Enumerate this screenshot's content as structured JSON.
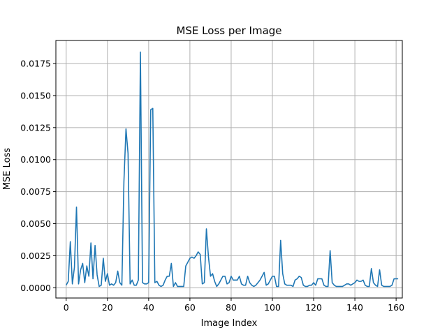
{
  "chart_data": {
    "type": "line",
    "title": "MSE Loss per Image",
    "xlabel": "Image Index",
    "ylabel": "MSE Loss",
    "xlim": [
      -5,
      163
    ],
    "ylim": [
      -0.0008,
      0.0193
    ],
    "xticks": [
      0,
      20,
      40,
      60,
      80,
      100,
      120,
      140,
      160
    ],
    "yticks": [
      0.0,
      0.0025,
      0.005,
      0.0075,
      0.01,
      0.0125,
      0.015,
      0.0175
    ],
    "xtick_labels": [
      "0",
      "20",
      "40",
      "60",
      "80",
      "100",
      "120",
      "140",
      "160"
    ],
    "ytick_labels": [
      "0.0000",
      "0.0025",
      "0.0050",
      "0.0075",
      "0.0100",
      "0.0125",
      "0.0150",
      "0.0175"
    ],
    "grid": true,
    "series": [
      {
        "color": "#1f77b4",
        "values": [
          0.0002,
          0.0005,
          0.0036,
          0.0003,
          0.0016,
          0.0063,
          0.0003,
          0.0014,
          0.0019,
          0.0004,
          0.0017,
          0.0009,
          0.0035,
          0.0007,
          0.0033,
          0.001,
          0.0001,
          0.0002,
          0.0023,
          0.0005,
          0.0011,
          0.0002,
          0.0003,
          0.0002,
          0.0004,
          0.0013,
          0.0004,
          0.0002,
          0.0083,
          0.0124,
          0.0105,
          0.0003,
          0.0006,
          0.0002,
          0.0002,
          0.0006,
          0.0184,
          0.0004,
          0.0003,
          0.0003,
          0.0004,
          0.0139,
          0.014,
          0.0004,
          0.0005,
          0.0002,
          0.0001,
          0.0002,
          0.0006,
          0.0009,
          0.0009,
          0.0019,
          0.0001,
          0.0004,
          0.0001,
          0.0001,
          0.0001,
          0.0001,
          0.0017,
          0.002,
          0.0023,
          0.0024,
          0.0023,
          0.0025,
          0.0028,
          0.0026,
          0.0003,
          0.0004,
          0.0046,
          0.0024,
          0.0009,
          0.0011,
          0.0005,
          0.0001,
          0.0003,
          0.0006,
          0.0009,
          0.0009,
          0.0003,
          0.0004,
          0.0009,
          0.0006,
          0.0006,
          0.0006,
          0.0009,
          0.0003,
          0.0002,
          0.0002,
          0.0009,
          0.0004,
          0.0002,
          0.0001,
          0.0002,
          0.0004,
          0.0006,
          0.0009,
          0.0012,
          0.0002,
          0.0003,
          0.0006,
          0.0009,
          0.0009,
          0.0001,
          0.0001,
          0.0037,
          0.0011,
          0.0003,
          0.0002,
          0.0002,
          0.0002,
          0.0001,
          0.0006,
          0.0007,
          0.0009,
          0.0008,
          0.0002,
          0.0001,
          0.0001,
          0.0002,
          0.0002,
          0.0004,
          0.0002,
          0.0007,
          0.0007,
          0.0007,
          0.0002,
          0.0001,
          0.0001,
          0.0029,
          0.0004,
          0.0002,
          0.0001,
          0.0001,
          0.0001,
          0.0001,
          0.0002,
          0.0003,
          0.0003,
          0.0002,
          0.0003,
          0.0004,
          0.0006,
          0.0005,
          0.0005,
          0.0006,
          0.0002,
          0.0001,
          0.0001,
          0.0015,
          0.0004,
          0.0002,
          0.0001,
          0.0014,
          0.0002,
          0.0001,
          0.0001,
          0.0001,
          0.0001,
          0.0002,
          0.0007,
          0.0007,
          0.0007
        ]
      }
    ]
  }
}
